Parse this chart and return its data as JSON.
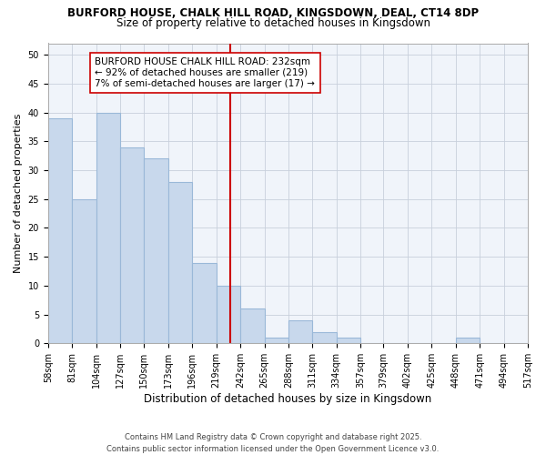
{
  "title1": "BURFORD HOUSE, CHALK HILL ROAD, KINGSDOWN, DEAL, CT14 8DP",
  "title2": "Size of property relative to detached houses in Kingsdown",
  "xlabel": "Distribution of detached houses by size in Kingsdown",
  "ylabel": "Number of detached properties",
  "bar_color": "#c8d8ec",
  "bar_edgecolor": "#9ab8d8",
  "grid_color": "#c8d0dc",
  "background_color": "#ffffff",
  "plot_bg_color": "#f0f4fa",
  "bins": [
    58,
    81,
    104,
    127,
    150,
    173,
    196,
    219,
    242,
    265,
    288,
    311,
    334,
    357,
    379,
    402,
    425,
    448,
    471,
    494,
    517
  ],
  "values": [
    39,
    25,
    40,
    34,
    32,
    28,
    14,
    10,
    6,
    1,
    4,
    2,
    1,
    0,
    0,
    0,
    0,
    1,
    0,
    0
  ],
  "property_size": 232,
  "vline_color": "#cc0000",
  "annotation_text": "BURFORD HOUSE CHALK HILL ROAD: 232sqm\n← 92% of detached houses are smaller (219)\n7% of semi-detached houses are larger (17) →",
  "annotation_box_color": "#ffffff",
  "annotation_box_edgecolor": "#cc0000",
  "ylim": [
    0,
    52
  ],
  "yticks": [
    0,
    5,
    10,
    15,
    20,
    25,
    30,
    35,
    40,
    45,
    50
  ],
  "footer": "Contains HM Land Registry data © Crown copyright and database right 2025.\nContains public sector information licensed under the Open Government Licence v3.0.",
  "title1_fontsize": 8.5,
  "title2_fontsize": 8.5,
  "xlabel_fontsize": 8.5,
  "ylabel_fontsize": 8,
  "tick_fontsize": 7,
  "footer_fontsize": 6,
  "annotation_fontsize": 7.5
}
